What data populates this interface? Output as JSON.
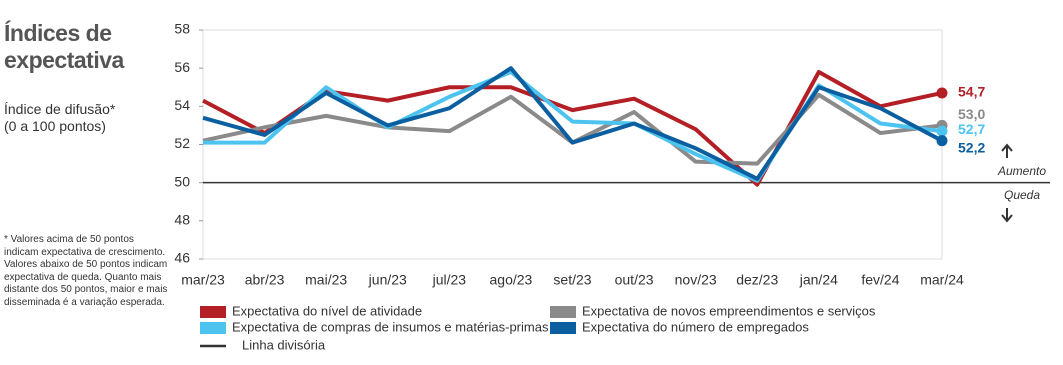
{
  "chart_data": {
    "type": "line",
    "title": "Índices de expectativa",
    "subtitle": "Índice de difusão* (0 a 100 pontos)",
    "footnote": "* Valores acima de 50 pontos indicam expectativa de crescimento. Valores abaixo de 50 pontos indicam expectativa de queda. Quanto mais distante dos 50 pontos, maior e mais disseminada é a variação esperada.",
    "categories": [
      "mar/23",
      "abr/23",
      "mai/23",
      "jun/23",
      "jul/23",
      "ago/23",
      "set/23",
      "out/23",
      "nov/23",
      "dez/23",
      "jan/24",
      "fev/24",
      "mar/24"
    ],
    "series": [
      {
        "name": "Expectativa do nível de atividade",
        "color": "#b31f24",
        "values": [
          54.3,
          52.6,
          54.8,
          54.3,
          55.0,
          55.0,
          53.8,
          54.4,
          52.8,
          49.9,
          55.8,
          54.0,
          54.7
        ],
        "value_labels": [
          null,
          null,
          null,
          null,
          null,
          null,
          null,
          null,
          null,
          null,
          null,
          null,
          "54,7"
        ]
      },
      {
        "name": "Expectativa de novos empreendimentos e serviços",
        "color": "#8a8a8a",
        "values": [
          52.2,
          52.9,
          53.5,
          52.9,
          52.7,
          54.5,
          52.1,
          53.7,
          51.1,
          51.0,
          54.6,
          52.6,
          53.0
        ],
        "value_labels": [
          null,
          null,
          null,
          null,
          null,
          null,
          null,
          null,
          null,
          null,
          null,
          null,
          "53,0"
        ]
      },
      {
        "name": "Expectativa de compras de insumos e matérias-primas",
        "color": "#4dc3ef",
        "values": [
          52.1,
          52.1,
          55.0,
          52.9,
          54.5,
          55.8,
          53.2,
          53.1,
          51.5,
          50.1,
          55.1,
          53.1,
          52.7
        ],
        "value_labels": [
          null,
          null,
          null,
          null,
          null,
          null,
          null,
          null,
          null,
          null,
          null,
          null,
          "52,7"
        ]
      },
      {
        "name": "Expectativa do número de empregados",
        "color": "#0b5fa0",
        "values": [
          53.4,
          52.5,
          54.7,
          53.0,
          53.9,
          56.0,
          52.1,
          53.1,
          51.8,
          50.2,
          55.0,
          53.9,
          52.2
        ],
        "value_labels": [
          null,
          null,
          null,
          null,
          null,
          null,
          null,
          null,
          null,
          null,
          null,
          null,
          "52,2"
        ]
      }
    ],
    "reference_line": {
      "value": 50,
      "name": "Linha divisória",
      "color": "#333333"
    },
    "annotations": [
      "Aumento",
      "Queda"
    ],
    "ylim": [
      46,
      58
    ],
    "yticks": [
      46,
      48,
      50,
      52,
      54,
      56,
      58
    ],
    "grid": false
  }
}
